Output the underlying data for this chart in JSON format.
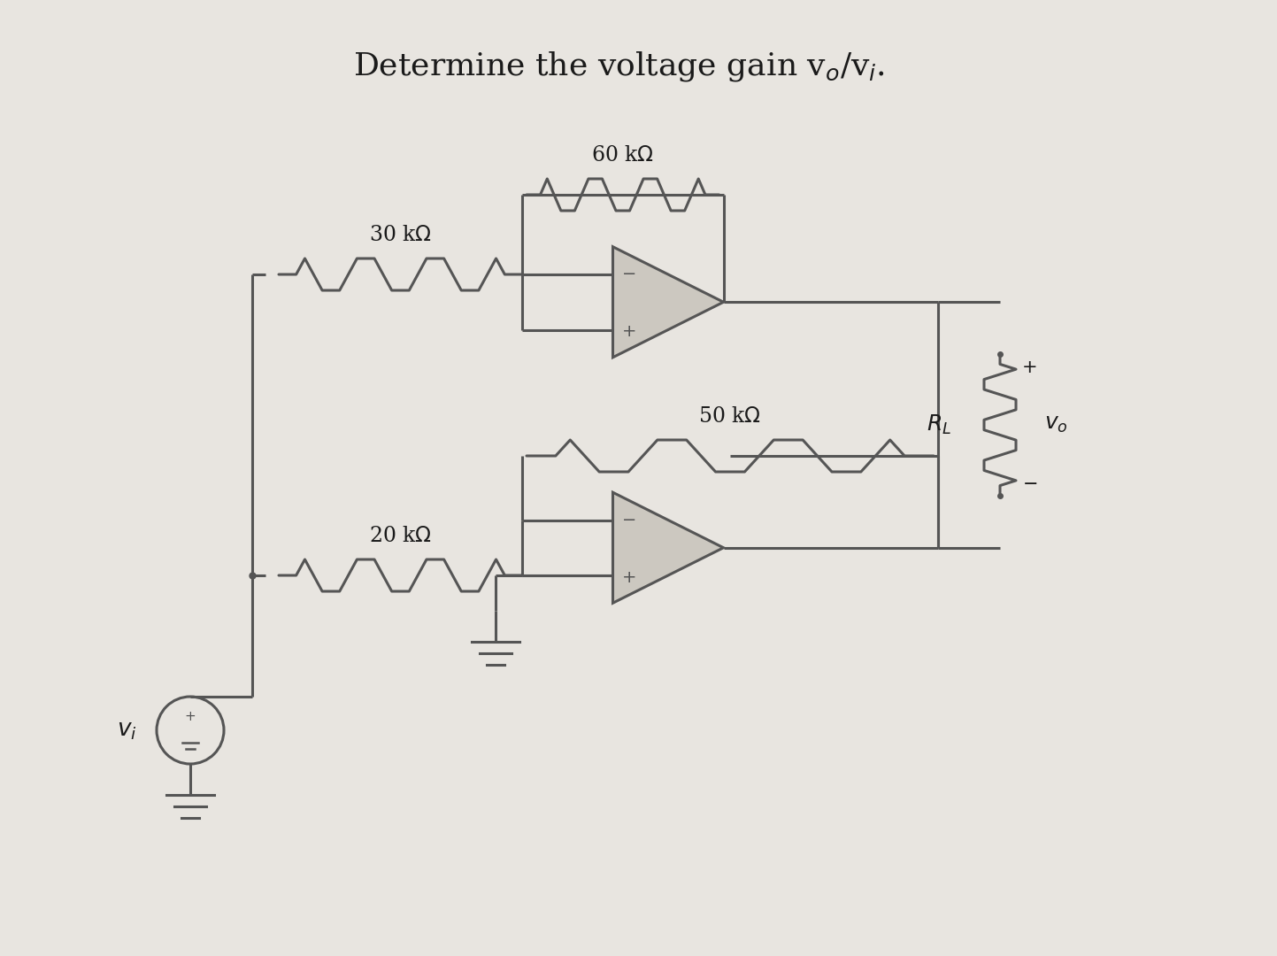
{
  "title": "Determine the voltage gain v$_o$/v$_i$.",
  "bg_color": "#e8e5e0",
  "lc": "#555555",
  "lw": 2.2,
  "res_30k": "30 kΩ",
  "res_60k": "60 kΩ",
  "res_20k": "20 kΩ",
  "res_50k": "50 kΩ",
  "res_RL": "R_L",
  "label_vi": "v_i",
  "label_vo": "v_o"
}
